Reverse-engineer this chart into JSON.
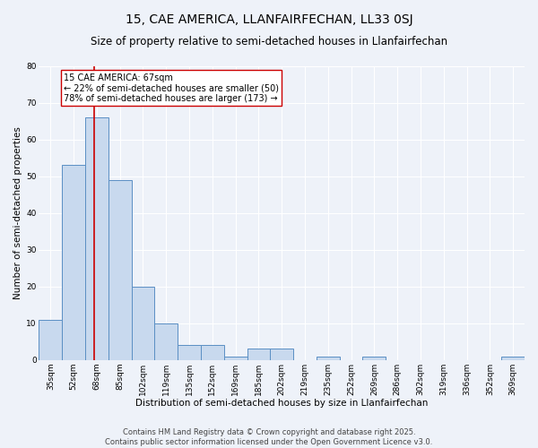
{
  "title": "15, CAE AMERICA, LLANFAIRFECHAN, LL33 0SJ",
  "subtitle": "Size of property relative to semi-detached houses in Llanfairfechan",
  "xlabel": "Distribution of semi-detached houses by size in Llanfairfechan",
  "ylabel": "Number of semi-detached properties",
  "categories": [
    "35sqm",
    "52sqm",
    "68sqm",
    "85sqm",
    "102sqm",
    "119sqm",
    "135sqm",
    "152sqm",
    "169sqm",
    "185sqm",
    "202sqm",
    "219sqm",
    "235sqm",
    "252sqm",
    "269sqm",
    "286sqm",
    "302sqm",
    "319sqm",
    "336sqm",
    "352sqm",
    "369sqm"
  ],
  "values": [
    11,
    53,
    66,
    49,
    20,
    10,
    4,
    4,
    1,
    3,
    3,
    0,
    1,
    0,
    1,
    0,
    0,
    0,
    0,
    0,
    1
  ],
  "bar_color": "#c8d9ee",
  "bar_edge_color": "#5b8fc4",
  "subject_line_color": "#cc0000",
  "annotation_line1": "15 CAE AMERICA: 67sqm",
  "annotation_line2": "← 22% of semi-detached houses are smaller (50)",
  "annotation_line3": "78% of semi-detached houses are larger (173) →",
  "annotation_box_color": "#ffffff",
  "annotation_box_edge": "#cc0000",
  "ylim": [
    0,
    80
  ],
  "yticks": [
    0,
    10,
    20,
    30,
    40,
    50,
    60,
    70,
    80
  ],
  "footer_line1": "Contains HM Land Registry data © Crown copyright and database right 2025.",
  "footer_line2": "Contains public sector information licensed under the Open Government Licence v3.0.",
  "bg_color": "#eef2f9",
  "plot_bg_color": "#eef2f9",
  "grid_color": "#ffffff",
  "title_fontsize": 10,
  "subtitle_fontsize": 8.5,
  "axis_label_fontsize": 7.5,
  "tick_fontsize": 6.5,
  "annotation_fontsize": 7,
  "footer_fontsize": 6
}
